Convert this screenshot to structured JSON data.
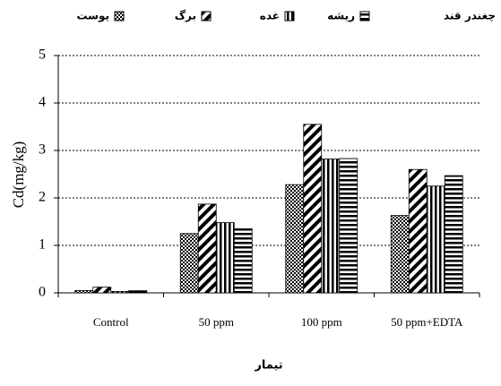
{
  "chart_data": {
    "type": "bar",
    "title": "چغندر قند",
    "categories": [
      "Control",
      "50 ppm",
      "100 ppm",
      "50 ppm+EDTA"
    ],
    "series": [
      {
        "name": "یوست",
        "color": "#000000",
        "pattern": "checker",
        "values": [
          0.05,
          1.25,
          2.28,
          1.63
        ]
      },
      {
        "name": "برگ",
        "color": "#000000",
        "pattern": "diagonal",
        "values": [
          0.12,
          1.87,
          3.55,
          2.6
        ]
      },
      {
        "name": "غده",
        "color": "#000000",
        "pattern": "vertical",
        "values": [
          0.03,
          1.48,
          2.82,
          2.25
        ]
      },
      {
        "name": "ریشه",
        "color": "#000000",
        "pattern": "horizontal",
        "values": [
          0.05,
          1.35,
          2.83,
          2.47
        ]
      }
    ],
    "y_label": "Cd(mg/kg)",
    "x_label": "تیمار",
    "ylim": [
      0,
      5
    ],
    "yticks": [
      0,
      1,
      2,
      3,
      4,
      5
    ],
    "grid": true
  }
}
